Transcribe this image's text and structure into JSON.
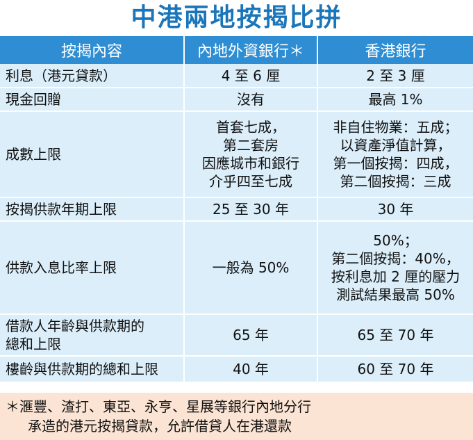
{
  "title": "中港兩地按揭比拼",
  "table": {
    "headers": [
      "按揭內容",
      "內地外資銀行＊",
      "香港銀行"
    ],
    "rows": [
      {
        "label": [
          "利息（港元貸款）"
        ],
        "mainland": [
          "4 至 6 厘"
        ],
        "hongkong": [
          "2 至 3 厘"
        ]
      },
      {
        "label": [
          "現金回贈"
        ],
        "mainland": [
          "沒有"
        ],
        "hongkong": [
          "最高 1%"
        ]
      },
      {
        "label": [
          "成數上限"
        ],
        "mainland": [
          "首套七成，",
          "第二套房",
          "因應城市和銀行",
          "介乎四至七成"
        ],
        "hongkong": [
          "非自住物業：五成；",
          "以資產淨值計算，",
          "第一個按揭：四成，",
          "第二個按揭：三成"
        ]
      },
      {
        "label": [
          "按揭供款年期上限"
        ],
        "mainland": [
          "25 至 30 年"
        ],
        "hongkong": [
          "30 年"
        ]
      },
      {
        "label": [
          "供款入息比率上限"
        ],
        "mainland": [
          "一般為 50%"
        ],
        "hongkong": [
          "50%；",
          "第二個按揭：40%，",
          "按利息加 2 厘的壓力",
          "測試結果最高 50%"
        ]
      },
      {
        "label": [
          "借款人年齡與供款期的",
          "總和上限"
        ],
        "mainland": [
          "65 年"
        ],
        "hongkong": [
          "65 至 70 年"
        ]
      },
      {
        "label": [
          "樓齡與供款期的總和上限"
        ],
        "mainland": [
          "40 年"
        ],
        "hongkong": [
          "60 至 70 年"
        ]
      }
    ]
  },
  "footnote": {
    "line1": "＊滙豐、渣打、東亞、永亨、星展等銀行內地分行",
    "line2": "承造的港元按揭貸款，允許借貸人在港還款"
  },
  "colors": {
    "title": "#1a75b9",
    "header_bg": "#2f8ed3",
    "row_bg": "#dbeefa",
    "footnote_bg": "#fbe4d3"
  }
}
